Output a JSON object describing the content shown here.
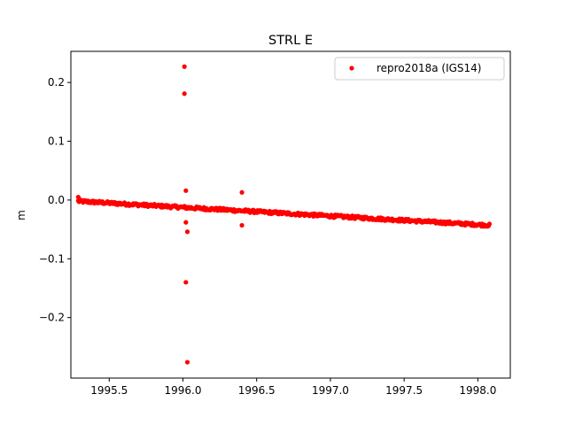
{
  "chart_data": {
    "type": "scatter",
    "title": "STRL E",
    "xlabel": "",
    "ylabel": "m",
    "xlim": [
      1995.24,
      1998.22
    ],
    "ylim": [
      -0.303,
      0.253
    ],
    "xticks": [
      1995.5,
      1996.0,
      1996.5,
      1997.0,
      1997.5,
      1998.0
    ],
    "xtick_labels": [
      "1995.5",
      "1996.0",
      "1996.5",
      "1997.0",
      "1997.5",
      "1998.0"
    ],
    "yticks": [
      -0.2,
      -0.1,
      0.0,
      0.1,
      0.2
    ],
    "ytick_labels": [
      "−0.2",
      "−0.1",
      "0.0",
      "0.1",
      "0.2"
    ],
    "grid": false,
    "legend": {
      "position": "top-right",
      "entries": [
        "repro2018a (IGS14)"
      ]
    },
    "series": [
      {
        "name": "repro2018a (IGS14)",
        "color": "#ff0000",
        "marker": "circle",
        "trend": {
          "x_start": 1995.29,
          "x_end": 1998.08,
          "y_start": -0.002,
          "y_end": -0.043,
          "step": 0.0055,
          "noise": 0.0025
        },
        "outliers": [
          {
            "x": 1995.29,
            "y": 0.005
          },
          {
            "x": 1996.01,
            "y": 0.227
          },
          {
            "x": 1996.01,
            "y": 0.181
          },
          {
            "x": 1996.02,
            "y": 0.016
          },
          {
            "x": 1996.02,
            "y": -0.038
          },
          {
            "x": 1996.03,
            "y": -0.054
          },
          {
            "x": 1996.02,
            "y": -0.14
          },
          {
            "x": 1996.03,
            "y": -0.276
          },
          {
            "x": 1996.4,
            "y": 0.013
          },
          {
            "x": 1996.4,
            "y": -0.043
          }
        ]
      }
    ]
  }
}
